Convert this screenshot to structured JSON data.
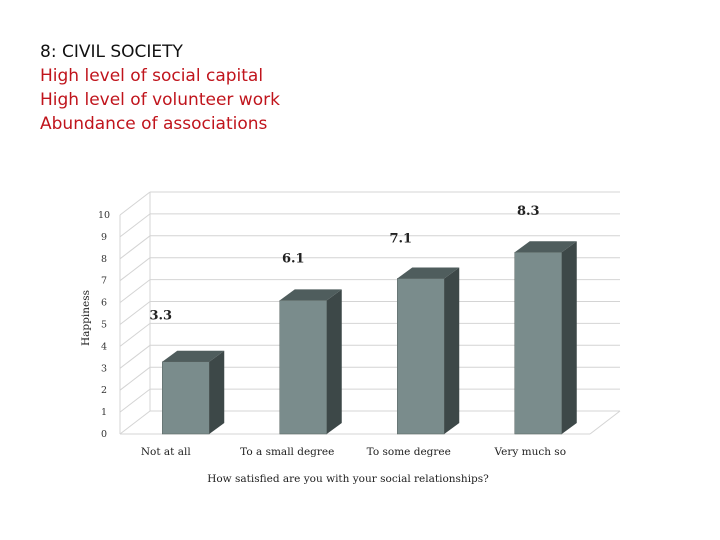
{
  "slide": {
    "title": "8: CIVIL SOCIETY",
    "bullets": [
      "High level of social capital",
      "High level of volunteer work",
      "Abundance of associations"
    ]
  },
  "chart_data": {
    "type": "bar",
    "categories": [
      "Not at all",
      "To a small degree",
      "To some degree",
      "Very much so"
    ],
    "values": [
      3.3,
      6.1,
      7.1,
      8.3
    ],
    "data_labels": [
      "3.3",
      "6.1",
      "7.1",
      "8.3"
    ],
    "xlabel": "How satisfied are you with your social relationships?",
    "ylabel": "Happiness",
    "ylim": [
      0,
      10
    ],
    "yticks": [
      "0",
      "1",
      "2",
      "3",
      "4",
      "5",
      "6",
      "7",
      "8",
      "9",
      "10"
    ],
    "grid": true,
    "three_d": true,
    "colors": {
      "front": "#7a8c8c",
      "side": "#3d4848",
      "top": "#4f5d5d",
      "grid": "#d4d4d4"
    }
  }
}
